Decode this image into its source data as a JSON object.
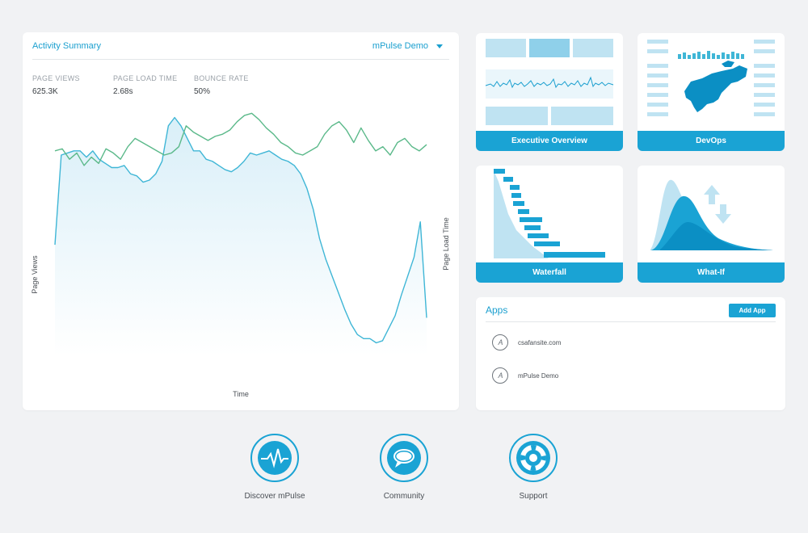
{
  "activity": {
    "title": "Activity Summary",
    "selector": "mPulse Demo",
    "metrics": [
      {
        "label": "PAGE VIEWS",
        "value": "625.3K"
      },
      {
        "label": "PAGE LOAD TIME",
        "value": "2.68s"
      },
      {
        "label": "BOUNCE RATE",
        "value": "50%"
      }
    ],
    "y_left_label": "Page Views",
    "y_right_label": "Page Load Time",
    "x_label": "Time"
  },
  "chart_data": {
    "type": "line",
    "xlabel": "Time",
    "series": [
      {
        "name": "Page Views",
        "color": "#3fb6d6",
        "fill": "#e6f4fa",
        "values": [
          0.33,
          0.76,
          0.77,
          0.78,
          0.78,
          0.75,
          0.78,
          0.74,
          0.72,
          0.7,
          0.7,
          0.71,
          0.67,
          0.66,
          0.63,
          0.64,
          0.67,
          0.73,
          0.9,
          0.94,
          0.9,
          0.84,
          0.78,
          0.78,
          0.74,
          0.73,
          0.71,
          0.69,
          0.68,
          0.7,
          0.73,
          0.77,
          0.76,
          0.77,
          0.78,
          0.76,
          0.74,
          0.73,
          0.71,
          0.67,
          0.6,
          0.5,
          0.36,
          0.26,
          0.18,
          0.1,
          0.02,
          -0.05,
          -0.1,
          -0.12,
          -0.12,
          -0.14,
          -0.13,
          -0.07,
          -0.01,
          0.09,
          0.18,
          0.27,
          0.44,
          -0.02
        ]
      },
      {
        "name": "Page Load Time",
        "color": "#5bb98a",
        "values": [
          0.78,
          0.79,
          0.74,
          0.77,
          0.71,
          0.75,
          0.72,
          0.79,
          0.77,
          0.74,
          0.8,
          0.84,
          0.82,
          0.8,
          0.78,
          0.76,
          0.77,
          0.8,
          0.9,
          0.87,
          0.85,
          0.83,
          0.85,
          0.86,
          0.88,
          0.92,
          0.95,
          0.96,
          0.93,
          0.89,
          0.86,
          0.82,
          0.8,
          0.77,
          0.76,
          0.78,
          0.8,
          0.86,
          0.9,
          0.92,
          0.88,
          0.82,
          0.89,
          0.83,
          0.78,
          0.8,
          0.76,
          0.82,
          0.84,
          0.8,
          0.78,
          0.81
        ]
      }
    ]
  },
  "tiles": [
    {
      "label": "Executive Overview",
      "icon": "executive-overview-thumbnail"
    },
    {
      "label": "DevOps",
      "icon": "devops-map-thumbnail"
    },
    {
      "label": "Waterfall",
      "icon": "waterfall-thumbnail"
    },
    {
      "label": "What-If",
      "icon": "what-if-thumbnail"
    }
  ],
  "apps": {
    "title": "Apps",
    "add_button": "Add App",
    "items": [
      {
        "name": "csafansite.com"
      },
      {
        "name": "mPulse Demo"
      }
    ]
  },
  "links": [
    {
      "label": "Discover mPulse",
      "icon": "pulse-icon"
    },
    {
      "label": "Community",
      "icon": "speech-bubble-icon"
    },
    {
      "label": "Support",
      "icon": "lifebuoy-icon"
    }
  ],
  "colors": {
    "accent": "#1aa3d4",
    "views_line": "#3fb6d6",
    "load_line": "#5bb98a",
    "background": "#f1f2f4"
  }
}
